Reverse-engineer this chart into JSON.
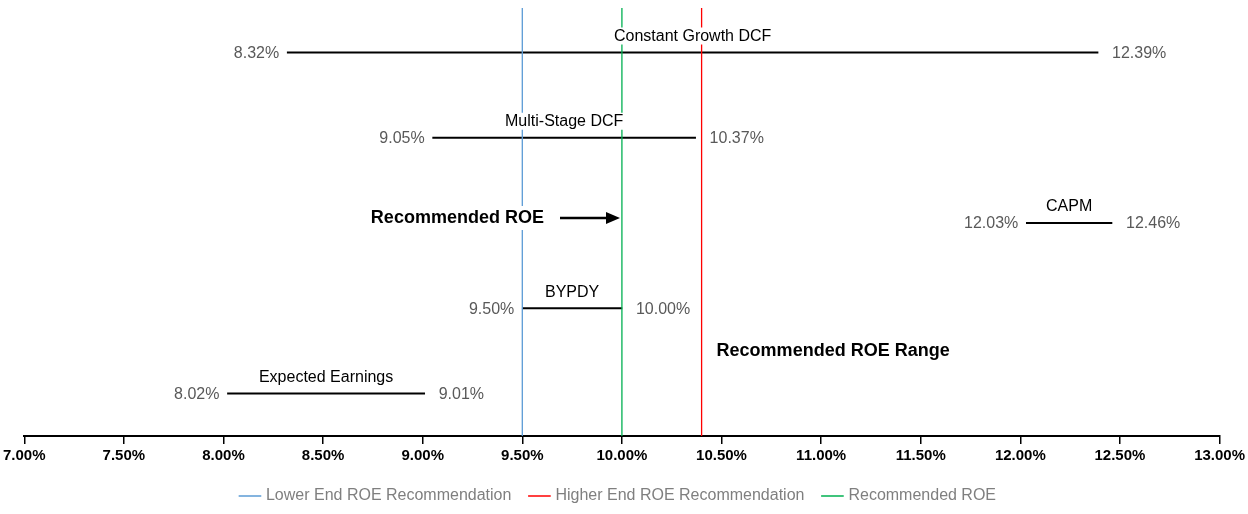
{
  "chart_data": {
    "type": "bar",
    "orientation": "horizontal",
    "categories": [
      "Constant Growth DCF",
      "Multi-Stage DCF",
      "CAPM",
      "BYPDY",
      "Expected Earnings"
    ],
    "base": [
      8.32,
      9.05,
      12.03,
      9.5,
      8.02
    ],
    "values": [
      4.07,
      1.32,
      0.43,
      0.5,
      0.99
    ],
    "color": "#000000",
    "xlim": [
      7,
      13
    ],
    "xticks": [
      {
        "value": 7,
        "label": "7.00%"
      },
      {
        "value": 7.5,
        "label": "7.50%"
      },
      {
        "value": 8,
        "label": "8.00%"
      },
      {
        "value": 8.5,
        "label": "8.50%"
      },
      {
        "value": 9,
        "label": "9.00%"
      },
      {
        "value": 9.5,
        "label": "9.50%"
      },
      {
        "value": 10,
        "label": "10.00%"
      },
      {
        "value": 10.5,
        "label": "10.50%"
      },
      {
        "value": 11,
        "label": "11.00%"
      },
      {
        "value": 11.5,
        "label": "11.50%"
      },
      {
        "value": 12,
        "label": "12.00%"
      },
      {
        "value": 12.5,
        "label": "12.50%"
      },
      {
        "value": 13,
        "label": "13.00%"
      }
    ],
    "tick_labels": "x",
    "grid": false,
    "legend": "bottom",
    "ref_lines": [
      {
        "axis": "x",
        "value": 9.5,
        "label": "Lower End ROE Recommendation",
        "color": "#5b9bd5"
      },
      {
        "axis": "x",
        "value": 10.4,
        "label": "Higher End ROE Recommendation",
        "color": "#ff0000"
      },
      {
        "axis": "x",
        "value": 10,
        "label": "Recommended ROE",
        "color": "#00b050"
      }
    ],
    "annotations": [
      {
        "text": "8.32%",
        "x": 8.32,
        "y": "Constant Growth DCF"
      },
      {
        "text": "12.39%",
        "x": 12.39,
        "y": "Constant Growth DCF"
      },
      {
        "text": "9.05%",
        "x": 9.05,
        "y": "Multi-Stage DCF"
      },
      {
        "text": "10.37%",
        "x": 10.37,
        "y": "Multi-Stage DCF"
      },
      {
        "text": "12.03%",
        "x": 12.03,
        "y": "CAPM"
      },
      {
        "text": "12.46%",
        "x": 12.46,
        "y": "CAPM"
      },
      {
        "text": "9.50%",
        "x": 9.5,
        "y": "BYPDY"
      },
      {
        "text": "10.00%",
        "x": 10,
        "y": "BYPDY"
      },
      {
        "text": "8.02%",
        "x": 8.02,
        "y": "Expected Earnings"
      },
      {
        "text": "9.01%",
        "x": 9.01,
        "y": "Expected Earnings"
      },
      "Recommended ROE",
      "Recommended ROE Range"
    ]
  }
}
